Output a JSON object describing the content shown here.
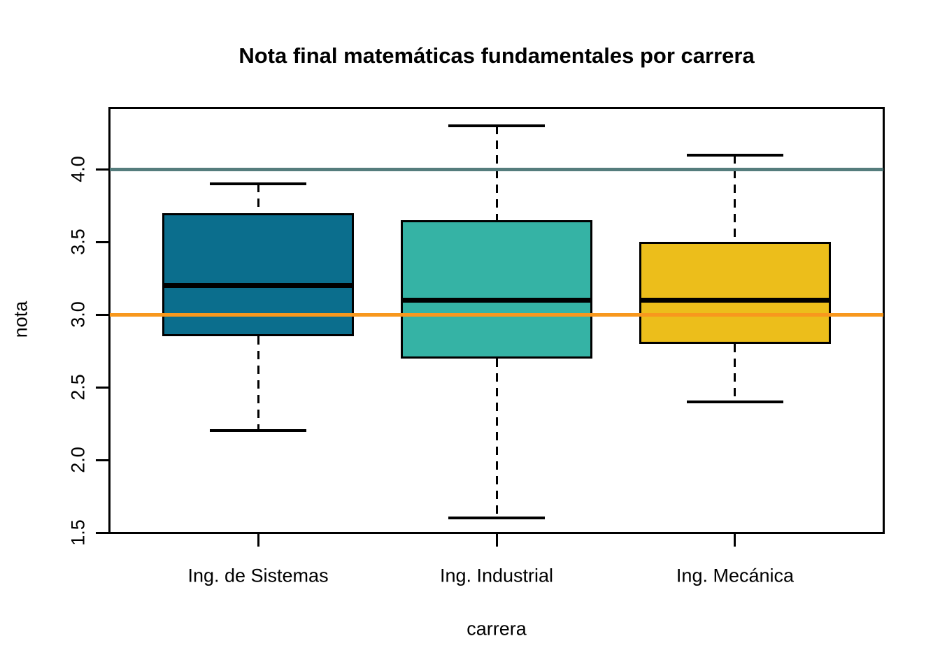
{
  "chart_data": {
    "type": "boxplot",
    "title": "Nota final matemáticas fundamentales por carrera",
    "xlabel": "carrera",
    "ylabel": "nota",
    "ylim": [
      1.5,
      4.42
    ],
    "yticks": [
      1.5,
      2.0,
      2.5,
      3.0,
      3.5,
      4.0
    ],
    "ytick_labels": [
      "1.5",
      "2.0",
      "2.5",
      "3.0",
      "3.5",
      "4.0"
    ],
    "categories": [
      "Ing. de Sistemas",
      "Ing. Industrial",
      "Ing. Mecánica"
    ],
    "series": [
      {
        "name": "Ing. de Sistemas",
        "whisker_low": 2.2,
        "q1": 2.85,
        "median": 3.2,
        "q3": 3.7,
        "whisker_high": 3.9,
        "outliers": [],
        "color": "#0B6E8D"
      },
      {
        "name": "Ing. Industrial",
        "whisker_low": 1.6,
        "q1": 2.7,
        "median": 3.1,
        "q3": 3.65,
        "whisker_high": 4.3,
        "outliers": [],
        "color": "#35B3A5"
      },
      {
        "name": "Ing. Mecánica",
        "whisker_low": 2.4,
        "q1": 2.8,
        "median": 3.1,
        "q3": 3.5,
        "whisker_high": 4.1,
        "outliers": [],
        "color": "#ECBE1B"
      }
    ],
    "reference_lines": [
      {
        "y": 4.0,
        "color": "#557D7D"
      },
      {
        "y": 3.0,
        "color": "#F8981D"
      }
    ],
    "grid": false,
    "legend": false,
    "colors": {
      "axis": "#000000",
      "box_border": "#000000",
      "median": "#000000",
      "background": "#FFFFFF"
    }
  }
}
